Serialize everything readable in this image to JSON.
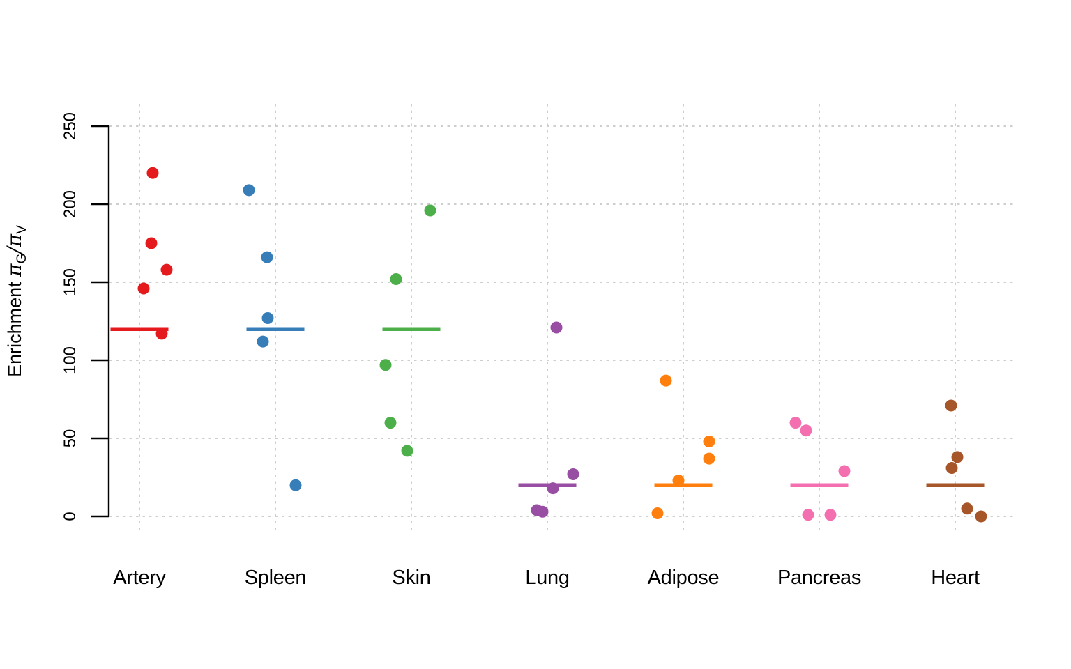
{
  "chart_data": {
    "type": "scatter",
    "subtype": "strip-plot-with-group-reference-lines",
    "title": "",
    "xlabel": "",
    "ylabel": "Enrichment πG/πV",
    "ylabel_parts": [
      {
        "t": "Enrichment ",
        "s": "plain"
      },
      {
        "t": "π",
        "s": "pi"
      },
      {
        "t": "G",
        "s": "sub"
      },
      {
        "t": "/",
        "s": "pi"
      },
      {
        "t": "π",
        "s": "pi"
      },
      {
        "t": "V",
        "s": "sub"
      }
    ],
    "ylim": [
      0,
      250
    ],
    "yticks": [
      0,
      50,
      100,
      150,
      200,
      250
    ],
    "grid": "dotted",
    "grid_color": "#c8c8c8",
    "legend": "none",
    "categories": [
      "Artery",
      "Spleen",
      "Skin",
      "Lung",
      "Adipose",
      "Pancreas",
      "Heart"
    ],
    "series": [
      {
        "name": "Artery",
        "color": "#E41A1C",
        "reference_line": 120,
        "values": [
          220,
          175,
          158,
          146,
          117
        ],
        "points": [
          {
            "value": 220,
            "dx": 19
          },
          {
            "value": 175,
            "dx": 17
          },
          {
            "value": 158,
            "dx": 39
          },
          {
            "value": 146,
            "dx": 6
          },
          {
            "value": 117,
            "dx": 32
          }
        ]
      },
      {
        "name": "Spleen",
        "color": "#377EB8",
        "reference_line": 120,
        "values": [
          209,
          166,
          127,
          112,
          20
        ],
        "points": [
          {
            "value": 209,
            "dx": -38
          },
          {
            "value": 166,
            "dx": -12
          },
          {
            "value": 127,
            "dx": -11
          },
          {
            "value": 112,
            "dx": -18
          },
          {
            "value": 20,
            "dx": 29
          }
        ]
      },
      {
        "name": "Skin",
        "color": "#4DAF4A",
        "reference_line": 120,
        "values": [
          196,
          152,
          97,
          60,
          42
        ],
        "points": [
          {
            "value": 196,
            "dx": 27
          },
          {
            "value": 152,
            "dx": -22
          },
          {
            "value": 97,
            "dx": -37
          },
          {
            "value": 60,
            "dx": -30
          },
          {
            "value": 42,
            "dx": -6
          }
        ]
      },
      {
        "name": "Lung",
        "color": "#984EA3",
        "reference_line": 20,
        "values": [
          121,
          27,
          18,
          4,
          3
        ],
        "points": [
          {
            "value": 121,
            "dx": 13
          },
          {
            "value": 27,
            "dx": 37
          },
          {
            "value": 18,
            "dx": 8
          },
          {
            "value": 4,
            "dx": -15
          },
          {
            "value": 3,
            "dx": -7
          }
        ]
      },
      {
        "name": "Adipose",
        "color": "#FF7F0E",
        "reference_line": 20,
        "values": [
          87,
          48,
          37,
          23,
          2
        ],
        "points": [
          {
            "value": 87,
            "dx": -25
          },
          {
            "value": 48,
            "dx": 37
          },
          {
            "value": 37,
            "dx": 37
          },
          {
            "value": 23,
            "dx": -7
          },
          {
            "value": 2,
            "dx": -37
          }
        ]
      },
      {
        "name": "Pancreas",
        "color": "#F46FB0",
        "reference_line": 20,
        "values": [
          60,
          55,
          29,
          1,
          1
        ],
        "points": [
          {
            "value": 60,
            "dx": -34
          },
          {
            "value": 55,
            "dx": -19
          },
          {
            "value": 29,
            "dx": 36
          },
          {
            "value": 1,
            "dx": -16
          },
          {
            "value": 1,
            "dx": 16
          }
        ]
      },
      {
        "name": "Heart",
        "color": "#A65628",
        "reference_line": 20,
        "values": [
          71,
          38,
          31,
          5,
          0
        ],
        "points": [
          {
            "value": 71,
            "dx": -6
          },
          {
            "value": 38,
            "dx": 3
          },
          {
            "value": 31,
            "dx": -5
          },
          {
            "value": 5,
            "dx": 17
          },
          {
            "value": 0,
            "dx": 37
          }
        ]
      }
    ]
  }
}
